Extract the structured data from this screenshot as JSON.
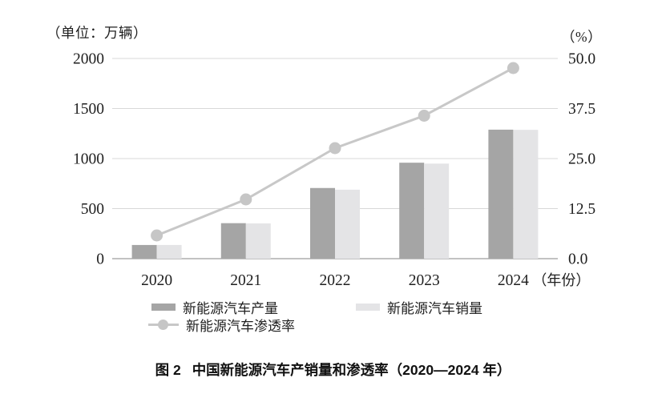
{
  "chart_data": {
    "type": "bar",
    "subtype": "grouped-bars-with-line",
    "categories": [
      "2020",
      "2021",
      "2022",
      "2023",
      "2024"
    ],
    "series": [
      {
        "name": "新能源汽车产量",
        "type": "bar",
        "axis": "left",
        "values": [
          136.6,
          354.5,
          705.8,
          958.7,
          1288.8
        ],
        "color": "#a5a5a5"
      },
      {
        "name": "新能源汽车销量",
        "type": "bar",
        "axis": "left",
        "values": [
          136.7,
          352.1,
          688.7,
          949.5,
          1286.6
        ],
        "color": "#e4e4e6"
      },
      {
        "name": "新能源汽车渗透率",
        "type": "line",
        "axis": "right",
        "values": [
          5.8,
          14.8,
          27.6,
          35.7,
          47.6
        ],
        "color": "#c8c8c8"
      }
    ],
    "left_axis": {
      "unit_label": "（单位：万辆）",
      "range": [
        0,
        2000
      ],
      "ticks": [
        0,
        500,
        1000,
        1500,
        2000
      ],
      "tick_labels": [
        "0",
        "500",
        "1000",
        "1500",
        "2000"
      ]
    },
    "right_axis": {
      "unit_label": "（%）",
      "range": [
        0,
        50
      ],
      "ticks": [
        0,
        12.5,
        25,
        37.5,
        50
      ],
      "tick_labels": [
        "0.0",
        "12.5",
        "25.0",
        "37.5",
        "50.0"
      ]
    },
    "x_axis": {
      "suffix_label": "（年份）"
    },
    "grid": true,
    "legend_position": "bottom",
    "title": "中国新能源汽车产销量和渗透率（2020—2024 年）"
  },
  "legend": {
    "items": [
      {
        "label": "新能源汽车产量",
        "swatch": "bar-dark"
      },
      {
        "label": "新能源汽车销量",
        "swatch": "bar-light"
      },
      {
        "label": "新能源汽车渗透率",
        "swatch": "line-marker"
      }
    ]
  },
  "caption": {
    "label": "图 2",
    "text": "中国新能源汽车产销量和渗透率（2020—2024 年）"
  },
  "colors": {
    "bar_production": "#a5a5a5",
    "bar_sales": "#e4e4e6",
    "line_penetration": "#c8c8c8",
    "marker_fill": "#c6c6c6",
    "gridline": "#d8d8d8",
    "axis_line": "#aeaeae",
    "text": "#1f1f1f"
  }
}
